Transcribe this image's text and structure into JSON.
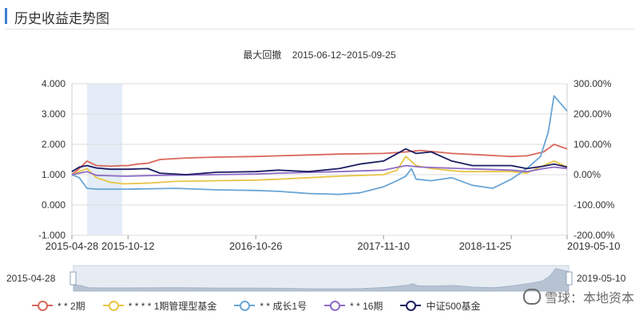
{
  "header": {
    "title": "历史收益走势图"
  },
  "drawdown": {
    "label": "最大回撤",
    "range": "2015-06-12~2015-09-25"
  },
  "slider": {
    "start_label": "2015-04-28",
    "end_label": "2019-05-10"
  },
  "watermark": {
    "text": "雪球：本地资本"
  },
  "chart_data": {
    "type": "line",
    "title": "",
    "x_ticks": [
      "2015-04-28",
      "2015-10-12",
      "2016-10-26",
      "2017-11-10",
      "2018-11-25",
      "2019-05-10"
    ],
    "y_left": {
      "ticks": [
        "4.000",
        "3.000",
        "2.000",
        "1.000",
        "0.000",
        "-1.000"
      ],
      "range": [
        -1,
        4
      ]
    },
    "y_right": {
      "ticks": [
        "300.00%",
        "200.00%",
        "100.00%",
        "0.00%",
        "-100.00%",
        "-200.00%"
      ],
      "range": [
        -200,
        300
      ]
    },
    "highlight": {
      "from": "2015-06-12",
      "to": "2015-09-25"
    },
    "grid": true,
    "legend_position": "bottom",
    "series": [
      {
        "name": "* * 2期",
        "color": "#d9685a",
        "points": [
          [
            "2015-04-28",
            1.0
          ],
          [
            "2015-05-20",
            1.2
          ],
          [
            "2015-06-12",
            1.45
          ],
          [
            "2015-07-10",
            1.3
          ],
          [
            "2015-08-20",
            1.28
          ],
          [
            "2015-09-25",
            1.3
          ],
          [
            "2015-10-12",
            1.3
          ],
          [
            "2015-11-10",
            1.35
          ],
          [
            "2015-12-10",
            1.38
          ],
          [
            "2016-01-15",
            1.5
          ],
          [
            "2016-04-01",
            1.55
          ],
          [
            "2016-07-01",
            1.58
          ],
          [
            "2016-10-26",
            1.6
          ],
          [
            "2017-01-01",
            1.62
          ],
          [
            "2017-04-01",
            1.65
          ],
          [
            "2017-07-01",
            1.68
          ],
          [
            "2017-11-10",
            1.7
          ],
          [
            "2018-01-15",
            1.75
          ],
          [
            "2018-03-01",
            1.8
          ],
          [
            "2018-06-01",
            1.7
          ],
          [
            "2018-09-01",
            1.65
          ],
          [
            "2018-11-25",
            1.6
          ],
          [
            "2019-01-10",
            1.62
          ],
          [
            "2019-03-01",
            1.75
          ],
          [
            "2019-04-01",
            2.0
          ],
          [
            "2019-05-10",
            1.85
          ]
        ]
      },
      {
        "name": "* * * * 1期管理型基金",
        "color": "#e8c444",
        "points": [
          [
            "2015-04-28",
            1.0
          ],
          [
            "2015-05-20",
            1.1
          ],
          [
            "2015-06-12",
            1.2
          ],
          [
            "2015-07-10",
            0.9
          ],
          [
            "2015-08-20",
            0.75
          ],
          [
            "2015-09-25",
            0.7
          ],
          [
            "2015-10-12",
            0.7
          ],
          [
            "2015-12-10",
            0.72
          ],
          [
            "2016-03-01",
            0.78
          ],
          [
            "2016-07-01",
            0.8
          ],
          [
            "2016-10-26",
            0.82
          ],
          [
            "2017-01-01",
            0.85
          ],
          [
            "2017-04-01",
            0.9
          ],
          [
            "2017-07-01",
            0.95
          ],
          [
            "2017-11-10",
            1.0
          ],
          [
            "2017-12-20",
            1.15
          ],
          [
            "2018-01-15",
            1.6
          ],
          [
            "2018-02-15",
            1.3
          ],
          [
            "2018-04-01",
            1.2
          ],
          [
            "2018-07-01",
            1.1
          ],
          [
            "2018-11-25",
            1.1
          ],
          [
            "2019-01-10",
            1.05
          ],
          [
            "2019-03-01",
            1.3
          ],
          [
            "2019-04-01",
            1.45
          ],
          [
            "2019-05-10",
            1.25
          ]
        ]
      },
      {
        "name": "* * 成长1号",
        "color": "#6aa6d6",
        "points": [
          [
            "2015-04-28",
            1.0
          ],
          [
            "2015-05-20",
            0.9
          ],
          [
            "2015-06-12",
            0.55
          ],
          [
            "2015-07-10",
            0.52
          ],
          [
            "2015-10-12",
            0.52
          ],
          [
            "2016-03-01",
            0.55
          ],
          [
            "2016-07-01",
            0.5
          ],
          [
            "2016-10-26",
            0.48
          ],
          [
            "2017-01-01",
            0.45
          ],
          [
            "2017-04-01",
            0.38
          ],
          [
            "2017-07-01",
            0.35
          ],
          [
            "2017-09-01",
            0.4
          ],
          [
            "2017-11-10",
            0.6
          ],
          [
            "2017-12-20",
            0.8
          ],
          [
            "2018-01-15",
            0.95
          ],
          [
            "2018-02-01",
            1.2
          ],
          [
            "2018-02-15",
            0.85
          ],
          [
            "2018-04-01",
            0.8
          ],
          [
            "2018-06-01",
            0.9
          ],
          [
            "2018-08-01",
            0.65
          ],
          [
            "2018-10-01",
            0.55
          ],
          [
            "2018-11-25",
            0.85
          ],
          [
            "2019-01-10",
            1.2
          ],
          [
            "2019-02-20",
            1.6
          ],
          [
            "2019-03-15",
            2.4
          ],
          [
            "2019-04-01",
            3.6
          ],
          [
            "2019-05-10",
            3.1
          ]
        ]
      },
      {
        "name": "* * 16期",
        "color": "#8e6cc4",
        "points": [
          [
            "2015-04-28",
            1.0
          ],
          [
            "2015-05-20",
            1.05
          ],
          [
            "2015-06-12",
            1.1
          ],
          [
            "2015-07-10",
            0.98
          ],
          [
            "2015-09-25",
            0.95
          ],
          [
            "2015-10-12",
            0.95
          ],
          [
            "2016-01-15",
            0.98
          ],
          [
            "2016-07-01",
            1.0
          ],
          [
            "2016-10-26",
            1.02
          ],
          [
            "2017-01-01",
            1.05
          ],
          [
            "2017-07-01",
            1.1
          ],
          [
            "2017-11-10",
            1.15
          ],
          [
            "2018-01-15",
            1.3
          ],
          [
            "2018-03-01",
            1.25
          ],
          [
            "2018-07-01",
            1.2
          ],
          [
            "2018-11-25",
            1.15
          ],
          [
            "2019-01-10",
            1.1
          ],
          [
            "2019-03-01",
            1.2
          ],
          [
            "2019-04-01",
            1.25
          ],
          [
            "2019-05-10",
            1.2
          ]
        ]
      },
      {
        "name": "中证500基金",
        "color": "#1d1d63",
        "points": [
          [
            "2015-04-28",
            1.1
          ],
          [
            "2015-05-20",
            1.25
          ],
          [
            "2015-06-12",
            1.3
          ],
          [
            "2015-07-10",
            1.22
          ],
          [
            "2015-08-20",
            1.18
          ],
          [
            "2015-10-12",
            1.18
          ],
          [
            "2015-12-10",
            1.2
          ],
          [
            "2016-01-15",
            1.05
          ],
          [
            "2016-04-01",
            1.0
          ],
          [
            "2016-07-01",
            1.08
          ],
          [
            "2016-10-26",
            1.1
          ],
          [
            "2017-01-01",
            1.15
          ],
          [
            "2017-04-01",
            1.1
          ],
          [
            "2017-07-01",
            1.2
          ],
          [
            "2017-09-01",
            1.35
          ],
          [
            "2017-11-10",
            1.45
          ],
          [
            "2018-01-15",
            1.85
          ],
          [
            "2018-02-15",
            1.7
          ],
          [
            "2018-04-01",
            1.75
          ],
          [
            "2018-06-01",
            1.45
          ],
          [
            "2018-08-01",
            1.3
          ],
          [
            "2018-11-25",
            1.3
          ],
          [
            "2019-01-10",
            1.2
          ],
          [
            "2019-03-01",
            1.28
          ],
          [
            "2019-04-01",
            1.35
          ],
          [
            "2019-05-10",
            1.25
          ]
        ]
      }
    ]
  }
}
